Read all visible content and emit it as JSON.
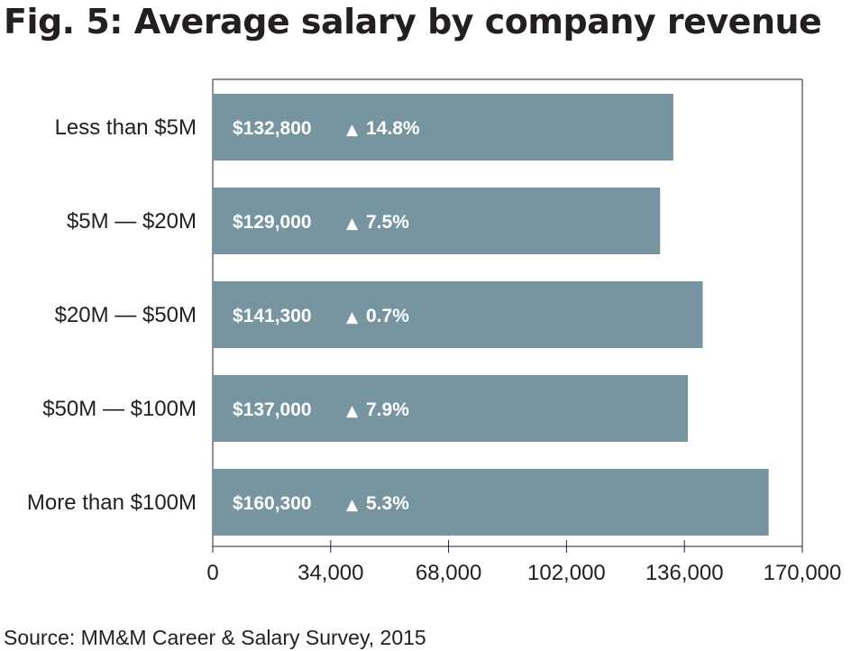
{
  "title": "Fig. 5: Average salary by company revenue",
  "source": "Source: MM&M Career & Salary Survey, 2015",
  "chart_data": {
    "type": "bar",
    "orientation": "horizontal",
    "categories": [
      "Less than $5M",
      "$5M — $20M",
      "$20M — $50M",
      "$50M — $100M",
      "More than $100M"
    ],
    "values": [
      132800,
      129000,
      141300,
      137000,
      160300
    ],
    "value_labels": [
      "$132,800",
      "$129,000",
      "$141,300",
      "$137,000",
      "$160,300"
    ],
    "change_labels": [
      "14.8%",
      "7.5%",
      "0.7%",
      "7.9%",
      "5.3%"
    ],
    "change_marker": "▲",
    "xlim": [
      0,
      170000
    ],
    "xticks": [
      0,
      34000,
      68000,
      102000,
      136000,
      170000
    ],
    "xtick_labels": [
      "0",
      "34,000",
      "68,000",
      "102,000",
      "136,000",
      "170,000"
    ],
    "grid": false,
    "colors": {
      "bar": "#7795a1",
      "label": "#ffffff",
      "axis": "#231f20"
    }
  }
}
